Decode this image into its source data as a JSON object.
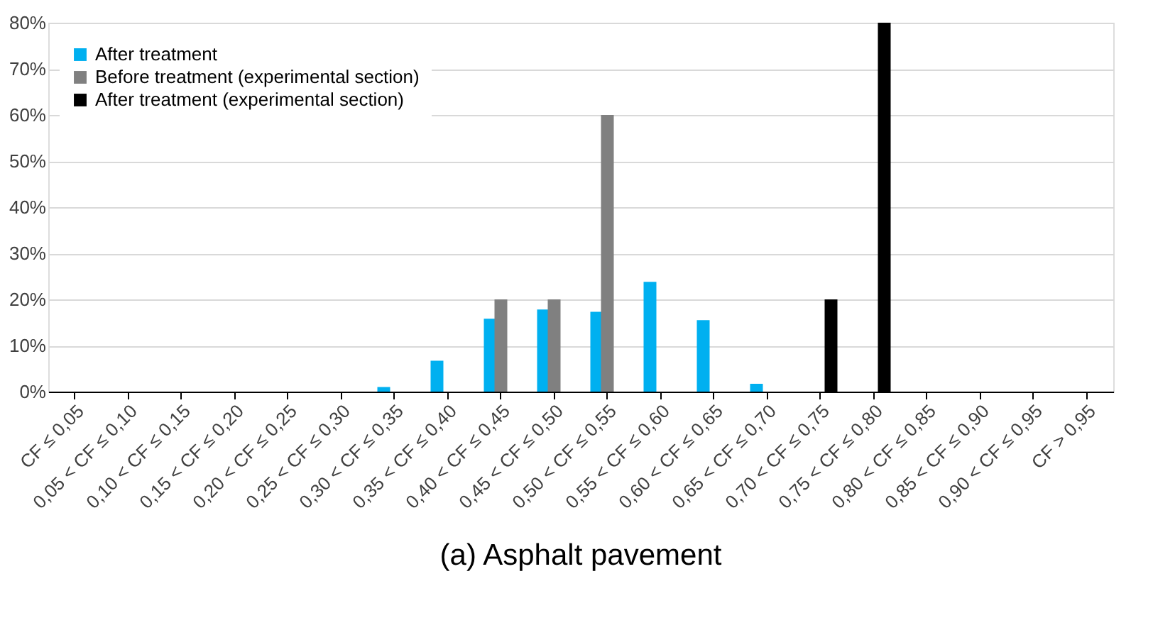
{
  "chart_data": {
    "type": "bar",
    "title": "(a) Asphalt pavement",
    "categories": [
      "CF ≤ 0,05",
      "0,05 < CF ≤ 0,10",
      "0,10 < CF ≤ 0,15",
      "0,15 < CF ≤ 0,20",
      "0,20 < CF ≤ 0,25",
      "0,25 < CF ≤ 0,30",
      "0,30 < CF ≤ 0,35",
      "0,35 < CF ≤ 0,40",
      "0,40 < CF ≤ 0,45",
      "0,45 < CF ≤ 0,50",
      "0,50 < CF ≤ 0,55",
      "0,55 < CF ≤ 0,60",
      "0,60 < CF ≤ 0,65",
      "0,65 < CF ≤ 0,70",
      "0,70 < CF ≤ 0,75",
      "0,75 < CF ≤ 0,80",
      "0,80 < CF ≤ 0,85",
      "0,85 < CF ≤ 0,90",
      "0,90 < CF ≤ 0,95",
      "CF > 0,95"
    ],
    "series": [
      {
        "name": "After treatment",
        "color": "#00b0f0",
        "values": [
          null,
          null,
          null,
          null,
          null,
          null,
          1,
          6.7,
          15.8,
          17.8,
          17.3,
          23.8,
          15.5,
          1.7,
          null,
          null,
          null,
          null,
          null,
          null
        ]
      },
      {
        "name": "Before treatment (experimental section)",
        "color": "#808080",
        "values": [
          null,
          null,
          null,
          null,
          null,
          null,
          null,
          null,
          20,
          20,
          60,
          null,
          null,
          null,
          null,
          null,
          null,
          null,
          null,
          null
        ]
      },
      {
        "name": "After treatment (experimental section)",
        "color": "#000000",
        "values": [
          null,
          null,
          null,
          null,
          null,
          null,
          null,
          null,
          null,
          null,
          null,
          null,
          null,
          null,
          20,
          80,
          null,
          null,
          null,
          null
        ]
      }
    ],
    "ylim": [
      0,
      80
    ],
    "yticks": [
      {
        "value": 0,
        "label": "0%"
      },
      {
        "value": 10,
        "label": "10%"
      },
      {
        "value": 20,
        "label": "20%"
      },
      {
        "value": 30,
        "label": "30%"
      },
      {
        "value": 40,
        "label": "40%"
      },
      {
        "value": 50,
        "label": "50%"
      },
      {
        "value": 60,
        "label": "60%"
      },
      {
        "value": 70,
        "label": "70%"
      },
      {
        "value": 80,
        "label": "80%"
      }
    ],
    "grid": "y",
    "legend": "top left"
  }
}
